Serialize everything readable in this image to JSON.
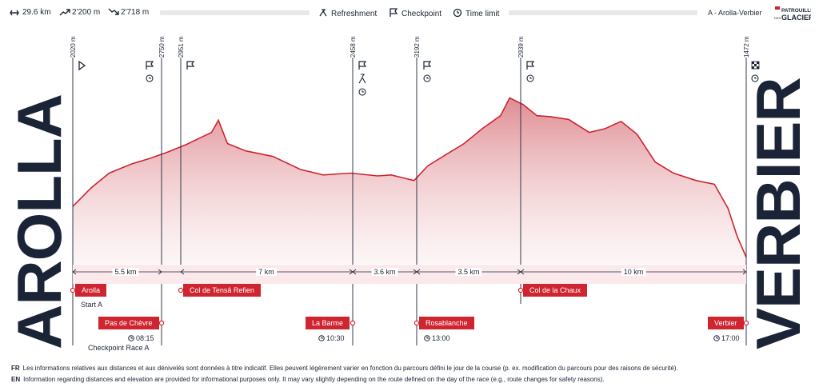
{
  "header": {
    "distance": "29.6 km",
    "ascent": "2'200 m",
    "descent": "2'718 m",
    "legend": {
      "refreshment": "Refreshment",
      "checkpoint": "Checkpoint",
      "time_limit": "Time limit"
    },
    "race_name": "A - Arolla-Verbier",
    "logo_text": "PATROUILLE DES GLACIERS",
    "icons": [
      "distance-icon",
      "ascent-icon",
      "descent-icon",
      "refreshment-icon",
      "checkpoint-icon",
      "time-limit-icon"
    ]
  },
  "start_town": "AROLLA",
  "end_town": "VERBIER",
  "altitudes": [
    "2020 m",
    "2750 m",
    "2951 m",
    "2458 m",
    "3192 m",
    "2939 m",
    "1472 m"
  ],
  "segments": [
    "5.5 km",
    "7 km",
    "3.6 km",
    "3.5 km",
    "10 km"
  ],
  "places": [
    {
      "name": "Arolla",
      "sub": "Start A"
    },
    {
      "name": "Pas de Chèvre",
      "time": "08:15",
      "sub": "Checkpoint Race A"
    },
    {
      "name": "Col de Tensâ Refien"
    },
    {
      "name": "La Barme",
      "time": "10:30"
    },
    {
      "name": "Rosablanche",
      "time": "13:00"
    },
    {
      "name": "Col de la Chaux"
    },
    {
      "name": "Verbier",
      "time": "17:00"
    }
  ],
  "footnotes": [
    {
      "lang": "FR",
      "text": "Les informations relatives aux distances et aux dénivelés sont données à titre indicatif. Elles peuvent légèrement varier en fonction du parcours défini le jour de la course (p. ex. modification du parcours pour des raisons de sécurité)."
    },
    {
      "lang": "EN",
      "text": "Information regarding distances and elevation are provided for informational purposes only. It may vary slightly depending on the route defined on the day of the race (e.g., route changes for safety reasons)."
    }
  ],
  "colors": {
    "accent": "#cf2530",
    "dark": "#1b2436"
  },
  "chart_data": {
    "type": "area",
    "xlabel": "",
    "ylabel": "",
    "x_unit": "km",
    "y_unit": "m",
    "points": [
      [
        0,
        2020
      ],
      [
        0.8,
        2220
      ],
      [
        1.6,
        2380
      ],
      [
        2.6,
        2480
      ],
      [
        3.4,
        2540
      ],
      [
        4.2,
        2610
      ],
      [
        5.0,
        2690
      ],
      [
        5.5,
        2750
      ],
      [
        6.1,
        2820
      ],
      [
        6.4,
        2951
      ],
      [
        6.8,
        2700
      ],
      [
        7.6,
        2620
      ],
      [
        8.8,
        2560
      ],
      [
        10.0,
        2420
      ],
      [
        11.0,
        2360
      ],
      [
        12.2,
        2380
      ],
      [
        13.4,
        2350
      ],
      [
        14.0,
        2360
      ],
      [
        15.0,
        2300
      ],
      [
        15.6,
        2458
      ],
      [
        16.4,
        2580
      ],
      [
        17.2,
        2700
      ],
      [
        18.0,
        2860
      ],
      [
        18.8,
        3000
      ],
      [
        19.2,
        3192
      ],
      [
        19.8,
        3120
      ],
      [
        20.4,
        3000
      ],
      [
        21.0,
        2990
      ],
      [
        21.8,
        2960
      ],
      [
        22.7,
        2820
      ],
      [
        23.4,
        2860
      ],
      [
        24.1,
        2939
      ],
      [
        24.8,
        2800
      ],
      [
        25.6,
        2500
      ],
      [
        26.4,
        2380
      ],
      [
        27.4,
        2300
      ],
      [
        28.2,
        2260
      ],
      [
        28.8,
        2000
      ],
      [
        29.2,
        1700
      ],
      [
        29.6,
        1472
      ]
    ],
    "ylim": [
      1400,
      3300
    ],
    "xlim": [
      0,
      29.6
    ]
  }
}
